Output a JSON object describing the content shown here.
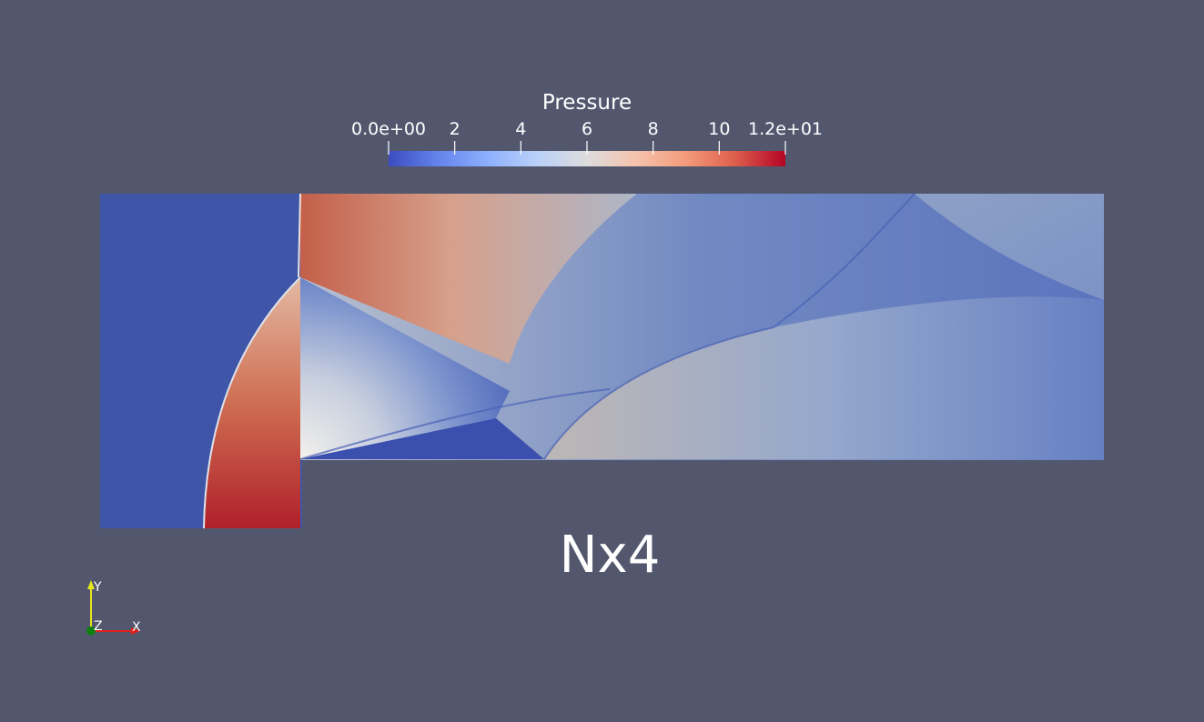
{
  "colorbar": {
    "title": "Pressure",
    "min_label": "0.0e+00",
    "max_label": "1.2e+01",
    "tick_values": [
      2,
      4,
      6,
      8,
      10
    ],
    "range": [
      0,
      12
    ],
    "colormap": "Cool to Warm",
    "colors": [
      "#3b4cc0",
      "#dddcdc",
      "#b40426"
    ]
  },
  "view_label": "Nx4",
  "axes": {
    "x_label": "X",
    "y_label": "Y",
    "z_label": "Z",
    "x_color": "#e0201b",
    "y_color": "#e6e61a",
    "z_color": "#0f7f12"
  },
  "background": "#52576e"
}
